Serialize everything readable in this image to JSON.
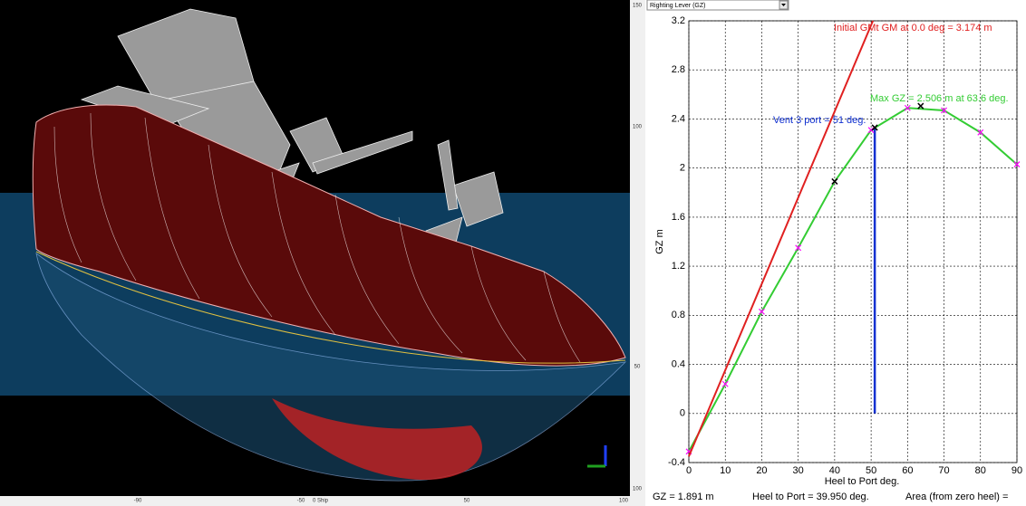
{
  "panel": {
    "dropdown": "Righting Lever (GZ)"
  },
  "view3d": {
    "bottom_ruler": [
      "-90",
      "-50",
      "0 Ship",
      "50",
      "100"
    ],
    "side_ruler": [
      "150",
      "100",
      "50",
      "100"
    ]
  },
  "status": {
    "gz": "GZ =  1.891 m",
    "heel": "Heel to Port =  39.950  deg.",
    "area": "Area (from zero heel) ="
  },
  "chart_data": {
    "type": "line",
    "xlabel": "Heel to Port   deg.",
    "ylabel": "GZ  m",
    "x": [
      0,
      10,
      20,
      30,
      40,
      50,
      60,
      70,
      80,
      90
    ],
    "series": [
      {
        "color": "#33cc33",
        "marker_color": "#ff00ff",
        "values": [
          -0.31,
          0.24,
          0.83,
          1.35,
          1.89,
          2.31,
          2.49,
          2.47,
          2.29,
          2.03
        ]
      },
      {
        "color": "#e02020",
        "x": [
          0,
          50.5
        ],
        "values": [
          -0.35,
          3.2
        ]
      }
    ],
    "points": [
      {
        "x": 40,
        "y": 1.891
      },
      {
        "x": 51,
        "y": 2.33
      },
      {
        "x": 63.6,
        "y": 2.506
      }
    ],
    "vent_color": "#1030d0",
    "annotations": [
      {
        "text": "Initial GMt GM at 0.0 deg = 3.174 m",
        "color": "#e02020"
      },
      {
        "text": "Max GZ = 2.506 m at 63.6 deg.",
        "color": "#33cc33"
      },
      {
        "text": "Vent 3 port = 51 deg.",
        "color": "#1030d0"
      }
    ],
    "xlim": [
      0,
      90
    ],
    "xticks": [
      0,
      10,
      20,
      30,
      40,
      50,
      60,
      70,
      80,
      90
    ],
    "ylim": [
      -0.4,
      3.2
    ],
    "yticks": [
      -0.4,
      0,
      0.4,
      0.8,
      1.2,
      1.6,
      2,
      2.4,
      2.8,
      3.2
    ],
    "grid": true
  }
}
